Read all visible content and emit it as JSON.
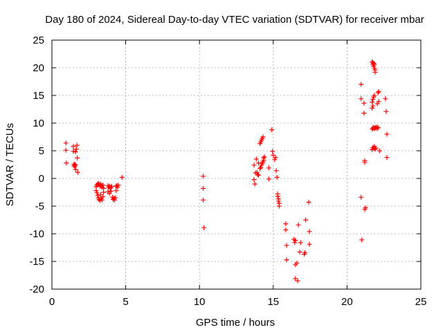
{
  "chart_data": {
    "type": "scatter",
    "title": "Day 180 of 2024, Sidereal Day-to-day VTEC variation (SDTVAR) for receiver mbar",
    "xlabel": "GPS time / hours",
    "ylabel": "SDTVAR / TECUs",
    "xlim": [
      0,
      25
    ],
    "ylim": [
      -20,
      25
    ],
    "xticks": [
      0,
      5,
      10,
      15,
      20,
      25
    ],
    "yticks": [
      -20,
      -15,
      -10,
      -5,
      0,
      5,
      10,
      15,
      20,
      25
    ],
    "xtick_labels": [
      "0",
      "5",
      "10",
      "15",
      "20",
      "25"
    ],
    "ytick_labels": [
      "-20",
      "-15",
      "-10",
      "-5",
      "0",
      "5",
      "10",
      "15",
      "20",
      "25"
    ],
    "grid": true,
    "marker": "+",
    "color": "#ff0000",
    "series": [
      {
        "name": "SDTVAR",
        "points": [
          [
            0.95,
            6.4
          ],
          [
            0.95,
            5.1
          ],
          [
            0.98,
            2.8
          ],
          [
            1.45,
            5.8
          ],
          [
            1.45,
            4.9
          ],
          [
            1.5,
            2.6
          ],
          [
            1.5,
            2.3
          ],
          [
            1.55,
            2.5
          ],
          [
            1.55,
            2.1
          ],
          [
            1.6,
            2.4
          ],
          [
            1.6,
            4.8
          ],
          [
            1.62,
            1.6
          ],
          [
            1.65,
            5.3
          ],
          [
            1.7,
            6.0
          ],
          [
            1.72,
            3.7
          ],
          [
            1.75,
            1.1
          ],
          [
            3.0,
            -1.5
          ],
          [
            3.0,
            -2.2
          ],
          [
            3.05,
            -1.2
          ],
          [
            3.05,
            -2.6
          ],
          [
            3.1,
            -1.0
          ],
          [
            3.1,
            -3.1
          ],
          [
            3.15,
            -0.9
          ],
          [
            3.15,
            -3.5
          ],
          [
            3.2,
            -1.1
          ],
          [
            3.2,
            -3.8
          ],
          [
            3.25,
            -1.4
          ],
          [
            3.25,
            -4.0
          ],
          [
            3.3,
            -1.0
          ],
          [
            3.3,
            -2.9
          ],
          [
            3.35,
            -1.3
          ],
          [
            3.35,
            -3.6
          ],
          [
            3.4,
            -1.6
          ],
          [
            3.4,
            -3.9
          ],
          [
            3.45,
            -1.2
          ],
          [
            3.45,
            -3.3
          ],
          [
            3.5,
            -1.8
          ],
          [
            3.5,
            -2.5
          ],
          [
            3.8,
            -1.3
          ],
          [
            3.8,
            -2.4
          ],
          [
            3.85,
            -1.6
          ],
          [
            3.9,
            -1.4
          ],
          [
            3.9,
            -2.7
          ],
          [
            3.95,
            -1.8
          ],
          [
            4.0,
            -1.6
          ],
          [
            4.0,
            -2.3
          ],
          [
            4.05,
            -1.4
          ],
          [
            4.1,
            -3.4
          ],
          [
            4.15,
            -3.8
          ],
          [
            4.2,
            -3.6
          ],
          [
            4.25,
            -3.9
          ],
          [
            4.3,
            -3.5
          ],
          [
            4.35,
            -1.4
          ],
          [
            4.35,
            -2.2
          ],
          [
            4.4,
            -1.3
          ],
          [
            4.45,
            -1.6
          ],
          [
            4.5,
            -1.2
          ],
          [
            4.75,
            0.2
          ],
          [
            10.25,
            0.4
          ],
          [
            10.25,
            -1.8
          ],
          [
            10.25,
            -3.9
          ],
          [
            10.3,
            -8.9
          ],
          [
            13.7,
            2.4
          ],
          [
            13.7,
            -0.2
          ],
          [
            13.75,
            -1.0
          ],
          [
            13.8,
            1.0
          ],
          [
            13.85,
            3.5
          ],
          [
            13.9,
            1.1
          ],
          [
            13.95,
            0.7
          ],
          [
            14.0,
            0.6
          ],
          [
            14.0,
            2.8
          ],
          [
            14.1,
            1.8
          ],
          [
            14.1,
            6.3
          ],
          [
            14.15,
            2.0
          ],
          [
            14.15,
            6.6
          ],
          [
            14.2,
            2.4
          ],
          [
            14.2,
            6.9
          ],
          [
            14.25,
            2.7
          ],
          [
            14.25,
            7.2
          ],
          [
            14.3,
            3.0
          ],
          [
            14.3,
            7.5
          ],
          [
            14.35,
            3.3
          ],
          [
            14.35,
            3.7
          ],
          [
            14.4,
            3.9
          ],
          [
            14.7,
            1.9
          ],
          [
            14.7,
            -0.1
          ],
          [
            14.9,
            8.8
          ],
          [
            14.95,
            4.9
          ],
          [
            15.0,
            4.2
          ],
          [
            15.1,
            3.4
          ],
          [
            15.15,
            3.8
          ],
          [
            15.2,
            1.4
          ],
          [
            15.25,
            0.2
          ],
          [
            15.3,
            -2.8
          ],
          [
            15.3,
            -3.2
          ],
          [
            15.35,
            -3.7
          ],
          [
            15.35,
            -4.1
          ],
          [
            15.4,
            -4.5
          ],
          [
            15.4,
            -5.0
          ],
          [
            15.85,
            -8.2
          ],
          [
            15.85,
            -9.3
          ],
          [
            15.9,
            -12.1
          ],
          [
            15.9,
            -14.7
          ],
          [
            16.4,
            -11.0
          ],
          [
            16.45,
            -11.6
          ],
          [
            16.5,
            -11.2
          ],
          [
            16.5,
            -15.6
          ],
          [
            16.5,
            -18.1
          ],
          [
            16.6,
            -15.3
          ],
          [
            16.65,
            -18.5
          ],
          [
            16.7,
            -8.4
          ],
          [
            16.8,
            -13.3
          ],
          [
            16.85,
            -11.6
          ],
          [
            17.1,
            -13.7
          ],
          [
            17.15,
            -13.4
          ],
          [
            17.2,
            -7.5
          ],
          [
            17.4,
            -4.3
          ],
          [
            17.45,
            -9.6
          ],
          [
            17.45,
            -11.9
          ],
          [
            20.95,
            17.0
          ],
          [
            20.95,
            14.4
          ],
          [
            20.95,
            -3.4
          ],
          [
            21.0,
            -11.1
          ],
          [
            21.15,
            13.6
          ],
          [
            21.15,
            11.8
          ],
          [
            21.2,
            3.2
          ],
          [
            21.2,
            2.9
          ],
          [
            21.2,
            -5.6
          ],
          [
            21.25,
            -5.3
          ],
          [
            21.7,
            21.1
          ],
          [
            21.75,
            20.9
          ],
          [
            21.75,
            20.6
          ],
          [
            21.8,
            20.8
          ],
          [
            21.8,
            20.3
          ],
          [
            21.85,
            20.6
          ],
          [
            21.85,
            19.9
          ],
          [
            21.9,
            19.6
          ],
          [
            21.9,
            19.2
          ],
          [
            21.7,
            13.8
          ],
          [
            21.75,
            14.3
          ],
          [
            21.8,
            14.7
          ],
          [
            21.85,
            15.0
          ],
          [
            21.7,
            12.7
          ],
          [
            21.75,
            13.1
          ],
          [
            21.7,
            8.9
          ],
          [
            21.75,
            9.1
          ],
          [
            21.8,
            9.2
          ],
          [
            21.85,
            9.0
          ],
          [
            21.9,
            9.2
          ],
          [
            21.95,
            9.1
          ],
          [
            22.0,
            9.3
          ],
          [
            22.05,
            9.0
          ],
          [
            22.1,
            9.2
          ],
          [
            21.7,
            5.2
          ],
          [
            21.75,
            5.6
          ],
          [
            21.8,
            5.4
          ],
          [
            21.85,
            5.8
          ],
          [
            21.9,
            5.3
          ],
          [
            21.95,
            5.5
          ],
          [
            22.05,
            13.5
          ],
          [
            22.1,
            15.5
          ],
          [
            22.15,
            13.9
          ],
          [
            22.15,
            15.7
          ],
          [
            22.2,
            5.0
          ],
          [
            22.6,
            14.4
          ],
          [
            22.65,
            12.1
          ],
          [
            22.7,
            8.0
          ],
          [
            22.7,
            3.8
          ]
        ]
      }
    ]
  }
}
